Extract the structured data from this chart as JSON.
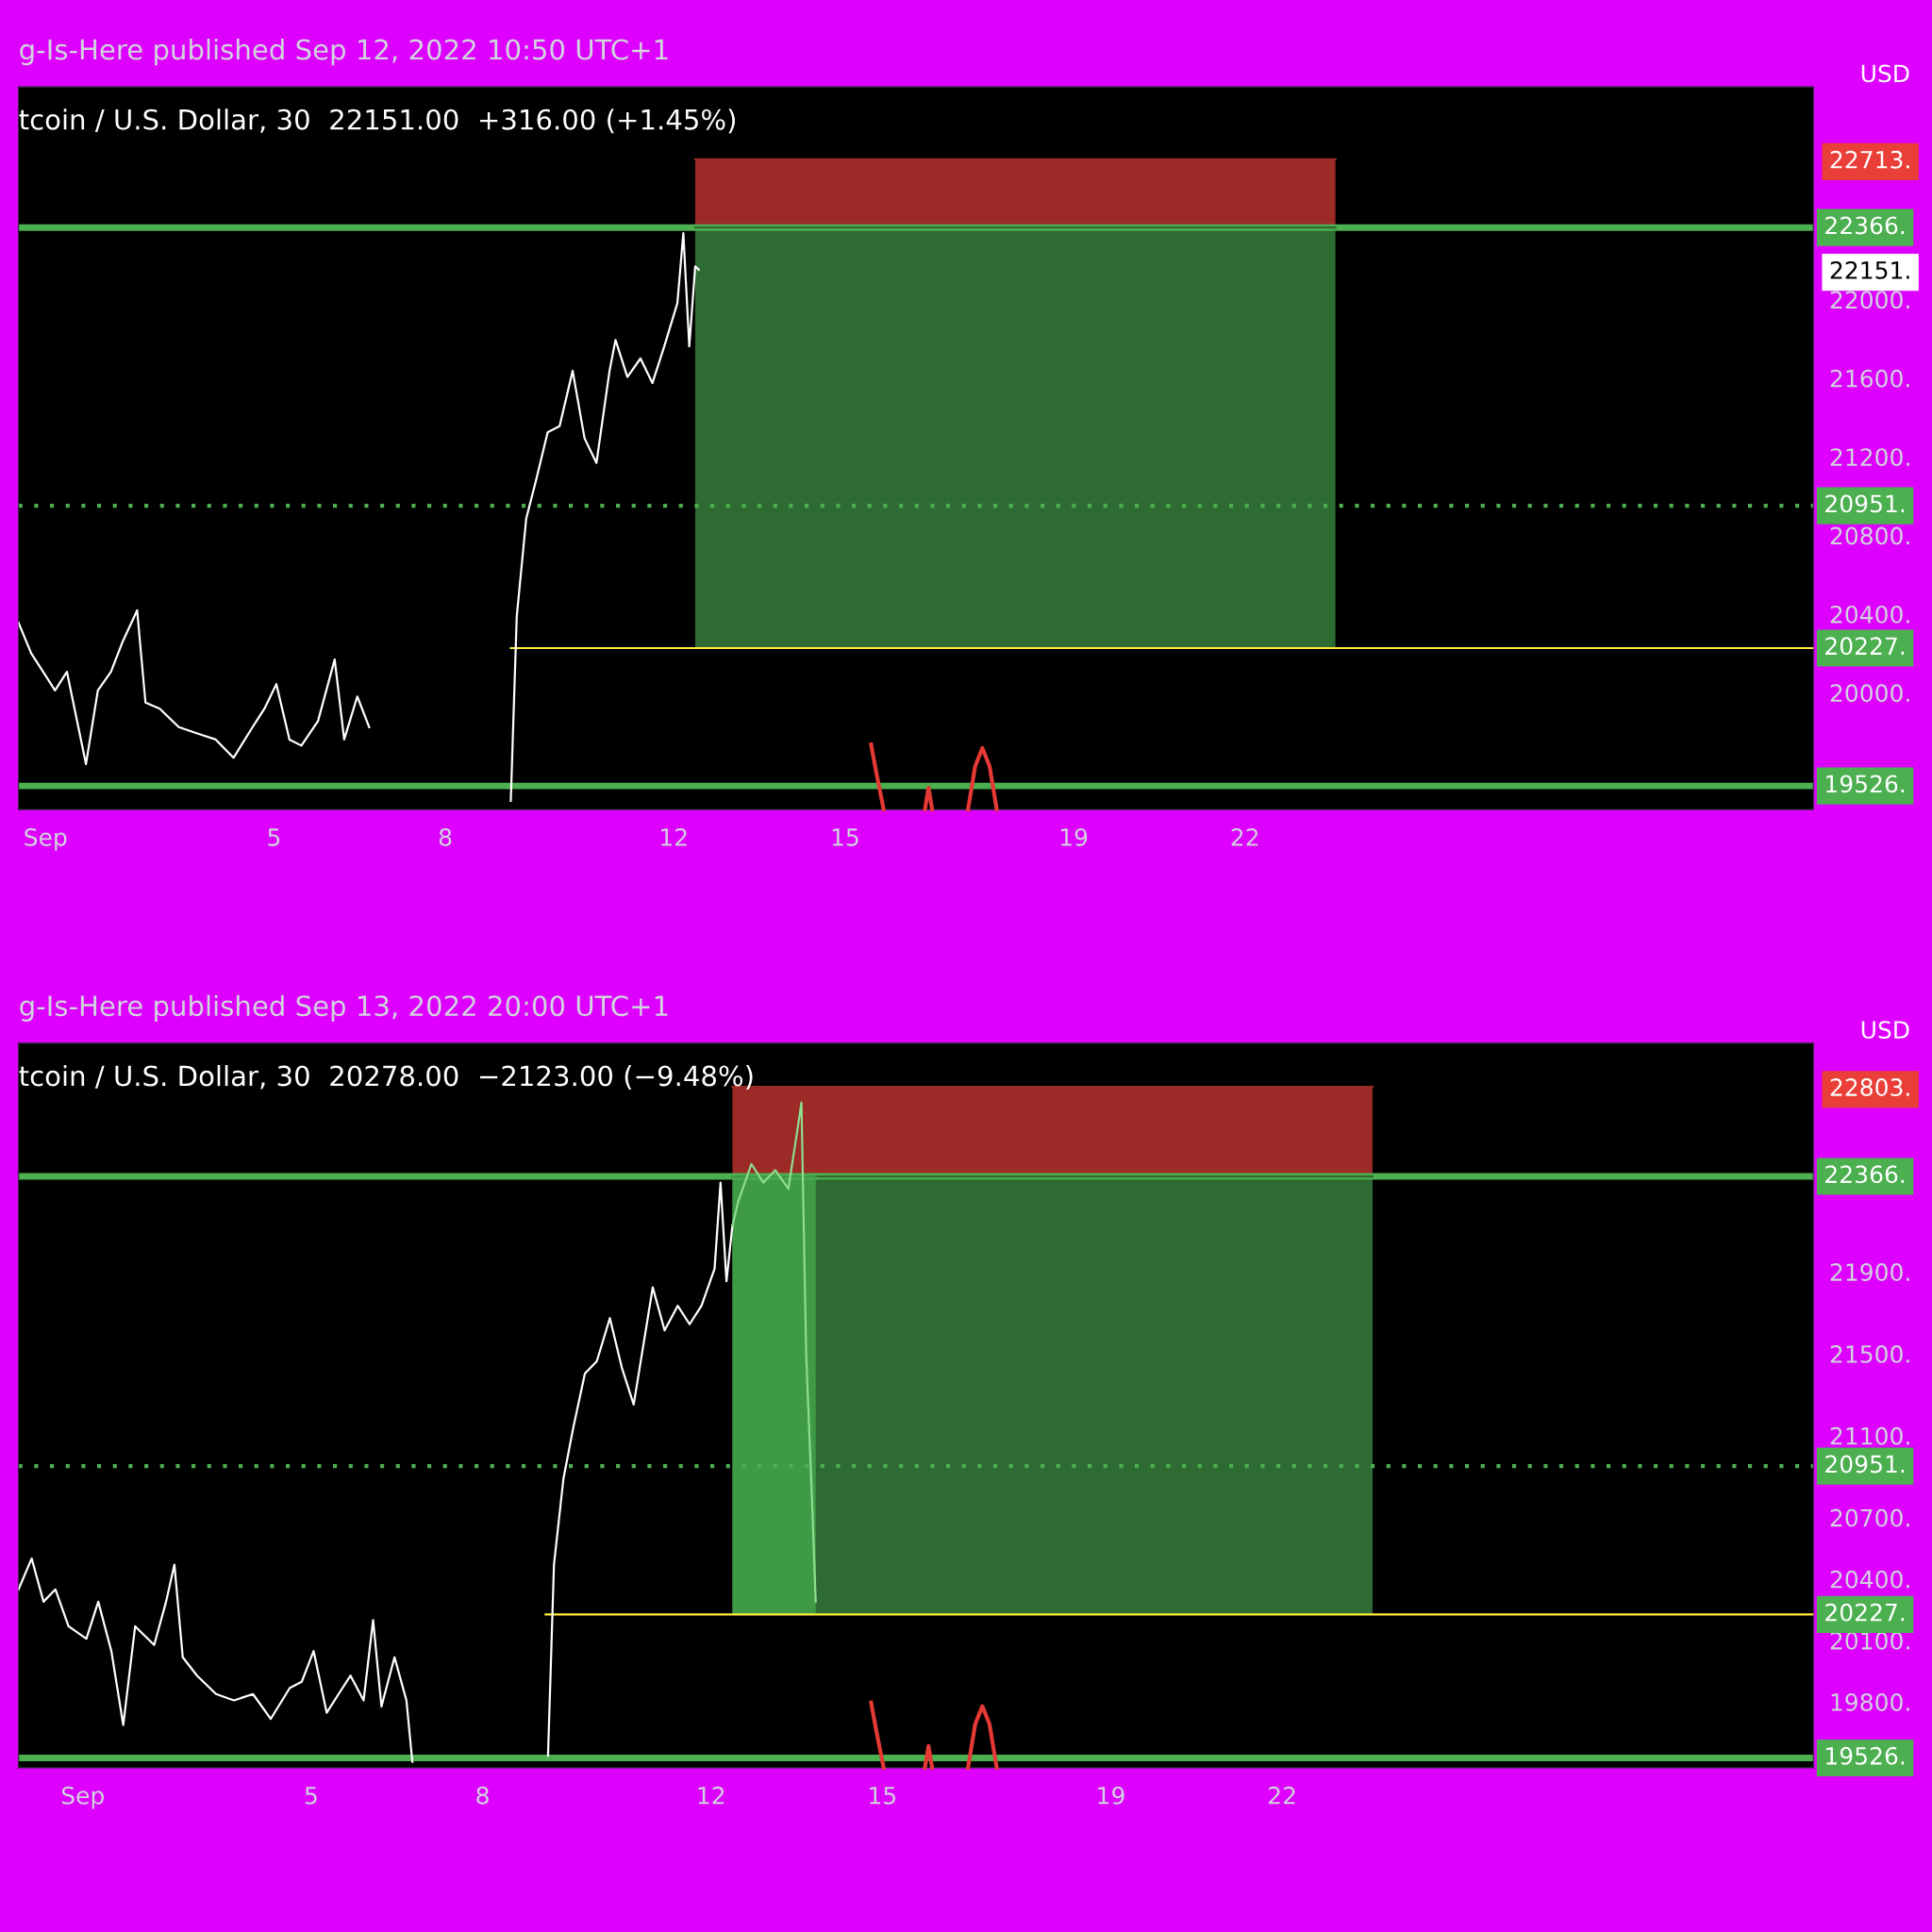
{
  "chart_data": [
    {
      "type": "line",
      "title": "g-Is-Here published Sep 12, 2022 10:50 UTC+1",
      "subtitle": "tcoin / U.S. Dollar, 30  22151.00  +316.00 (+1.45%)",
      "ylabel": "USD",
      "grid": false,
      "legend": false,
      "xlim": [
        "2022-08-31T12:40",
        "2022-10-01T22:50"
      ],
      "ylim": [
        19406,
        23081
      ],
      "xticks": [
        {
          "value": "2022-09-01",
          "label": "Sep"
        },
        {
          "value": "2022-09-05",
          "label": "5"
        },
        {
          "value": "2022-09-08",
          "label": "8"
        },
        {
          "value": "2022-09-12",
          "label": "12"
        },
        {
          "value": "2022-09-15",
          "label": "15"
        },
        {
          "value": "2022-09-19",
          "label": "19"
        },
        {
          "value": "2022-09-22",
          "label": "22"
        }
      ],
      "yticks": [
        {
          "value": 20000,
          "label": "20000."
        },
        {
          "value": 20400,
          "label": "20400."
        },
        {
          "value": 20800,
          "label": "20800."
        },
        {
          "value": 21200,
          "label": "21200."
        },
        {
          "value": 21600,
          "label": "21600."
        },
        {
          "value": 22000,
          "label": "22000."
        },
        {
          "value": 22151,
          "label": "22151."
        },
        {
          "value": 22713,
          "label": "22713."
        }
      ],
      "series": [
        {
          "type": "line",
          "x": [
            "2022-09-12T09:00",
            "2022-09-23T14:00"
          ],
          "values": [
            22713,
            22713
          ],
          "lower": [
            22366,
            22366
          ],
          "upper": [
            22713,
            22713
          ],
          "color": "#9c2a26"
        },
        {
          "type": "line",
          "x": [
            "2022-09-12T09:00",
            "2022-09-23T14:00"
          ],
          "values": [
            22366,
            22366
          ],
          "lower": [
            20227,
            20227
          ],
          "upper": [
            22366,
            22366
          ],
          "color": "#2e6b33"
        },
        {
          "type": "line",
          "color": "#ffeb3b",
          "x": [
            "2022-09-09T03:30",
            "2022-10-01T22:50"
          ],
          "values": [
            20227,
            20227
          ]
        },
        {
          "color": "#ffffff",
          "x": [
            "2022-08-31T12:40",
            "2022-08-31T18:00",
            "2022-08-31T23:00",
            "2022-09-01T04:00",
            "2022-09-01T09:00",
            "2022-09-01T17:00",
            "2022-09-01T22:00",
            "2022-09-02T03:30",
            "2022-09-02T08:30",
            "2022-09-02T14:30",
            "2022-09-02T18:00",
            "2022-09-03T00:00",
            "2022-09-03T08:00",
            "2022-09-03T15:30",
            "2022-09-03T23:30",
            "2022-09-04T07:00",
            "2022-09-04T15:00",
            "2022-09-04T20:00",
            "2022-09-05T01:00",
            "2022-09-05T06:30",
            "2022-09-05T11:30",
            "2022-09-05T18:30",
            "2022-09-06T01:30",
            "2022-09-06T05:30",
            "2022-09-06T11:00",
            "2022-09-06T16:00",
            "2022-09-07T18:00",
            "2022-09-09T03:30",
            "2022-09-09T06:00",
            "2022-09-09T10:00",
            "2022-09-09T14:00",
            "2022-09-09T19:00",
            "2022-09-10T00:00",
            "2022-09-10T05:30",
            "2022-09-10T10:30",
            "2022-09-10T15:30",
            "2022-09-10T21:00",
            "2022-09-10T23:30",
            "2022-09-11T04:30",
            "2022-09-11T10:00",
            "2022-09-11T15:00",
            "2022-09-11T20:00",
            "2022-09-12T01:30",
            "2022-09-12T04:00",
            "2022-09-12T06:30",
            "2022-09-12T09:00",
            "2022-09-12T10:30"
          ],
          "values": [
            20356,
            20200,
            20106,
            20012,
            20106,
            19637,
            20012,
            20106,
            20262,
            20419,
            19950,
            19919,
            19825,
            19794,
            19762,
            19669,
            19825,
            19919,
            20044,
            19762,
            19731,
            19856,
            20169,
            19762,
            19981,
            19825,
            null,
            19450,
            20387,
            20887,
            21075,
            21325,
            21356,
            21637,
            21294,
            21169,
            21637,
            21794,
            21606,
            21700,
            21575,
            21762,
            21981,
            22337,
            21762,
            22169,
            22151
          ]
        }
      ],
      "ref_lines": [
        {
          "axis": "y",
          "value": 22366,
          "label": "22366.",
          "color": "#4caf50",
          "line_style": "solid"
        },
        {
          "axis": "y",
          "value": 20951,
          "label": "20951.",
          "color": "#4caf50",
          "line_style": "dotted"
        },
        {
          "axis": "y",
          "value": 19526,
          "label": "19526.",
          "color": "#4caf50",
          "line_style": "solid"
        }
      ],
      "annotations": [
        {
          "text": "20227.",
          "x": "2022-10-01T22:50",
          "y": 20227
        }
      ]
    },
    {
      "type": "line",
      "title": "g-Is-Here published Sep 13, 2022 20:00 UTC+1",
      "subtitle": "tcoin / U.S. Dollar, 30  20278.00  −2123.00 (−9.48%)",
      "ylabel": "USD",
      "grid": false,
      "legend": false,
      "xlim": [
        "2022-08-30T21:00",
        "2022-10-01T07:15"
      ],
      "ylim": [
        19478,
        23016
      ],
      "xticks": [
        {
          "value": "2022-09-01",
          "label": "Sep"
        },
        {
          "value": "2022-09-05",
          "label": "5"
        },
        {
          "value": "2022-09-08",
          "label": "8"
        },
        {
          "value": "2022-09-12",
          "label": "12"
        },
        {
          "value": "2022-09-15",
          "label": "15"
        },
        {
          "value": "2022-09-19",
          "label": "19"
        },
        {
          "value": "2022-09-22",
          "label": "22"
        }
      ],
      "yticks": [
        {
          "value": 19800,
          "label": "19800."
        },
        {
          "value": 20100,
          "label": "20100."
        },
        {
          "value": 20400,
          "label": "20400."
        },
        {
          "value": 20700,
          "label": "20700."
        },
        {
          "value": 21100,
          "label": "21100."
        },
        {
          "value": 21500,
          "label": "21500."
        },
        {
          "value": 21900,
          "label": "21900."
        },
        {
          "value": 22803,
          "label": "22803."
        }
      ],
      "series": [
        {
          "type": "line",
          "x": [
            "2022-09-12T09:00",
            "2022-09-23T14:00"
          ],
          "values": [
            22803,
            22803
          ],
          "lower": [
            22366,
            22366
          ],
          "upper": [
            22803,
            22803
          ],
          "color": "#9c2a26"
        },
        {
          "type": "line",
          "x": [
            "2022-09-12T09:00",
            "2022-09-23T14:00"
          ],
          "values": [
            22366,
            22366
          ],
          "lower": [
            20227,
            20227
          ],
          "upper": [
            22366,
            22366
          ],
          "color": "#2e6b33"
        },
        {
          "type": "line",
          "x": [
            "2022-09-12T09:00",
            "2022-09-13T20:00"
          ],
          "values": [
            22366,
            22366
          ],
          "lower": [
            20227,
            20227
          ],
          "upper": [
            22366,
            22366
          ],
          "color": "#3f9a46"
        },
        {
          "type": "line",
          "color": "#ffeb3b",
          "x": [
            "2022-09-09T02:30",
            "2022-10-01T07:15"
          ],
          "values": [
            20227,
            20227
          ]
        },
        {
          "color": "#ffffff",
          "x": [
            "2022-08-30T21:00",
            "2022-08-31T02:30",
            "2022-08-31T07:30",
            "2022-08-31T12:30",
            "2022-08-31T18:00",
            "2022-09-01T01:30",
            "2022-09-01T06:30",
            "2022-09-01T12:00",
            "2022-09-01T17:00",
            "2022-09-01T22:00",
            "2022-09-02T06:00",
            "2022-09-02T11:00",
            "2022-09-02T14:30",
            "2022-09-02T18:00",
            "2022-09-03T00:00",
            "2022-09-03T08:00",
            "2022-09-03T15:30",
            "2022-09-03T23:30",
            "2022-09-04T07:00",
            "2022-09-04T15:00",
            "2022-09-04T20:00",
            "2022-09-05T01:00",
            "2022-09-05T06:30",
            "2022-09-05T11:30",
            "2022-09-05T16:30",
            "2022-09-05T22:00",
            "2022-09-06T02:00",
            "2022-09-06T05:30",
            "2022-09-06T11:00",
            "2022-09-06T16:00",
            "2022-09-06T18:30",
            "2022-09-07T23:00",
            "2022-09-09T03:30",
            "2022-09-09T06:00",
            "2022-09-09T10:00",
            "2022-09-09T14:00",
            "2022-09-09T19:00",
            "2022-09-10T00:00",
            "2022-09-10T05:30",
            "2022-09-10T10:30",
            "2022-09-10T15:30",
            "2022-09-10T21:00",
            "2022-09-10T23:30",
            "2022-09-11T04:30",
            "2022-09-11T10:00",
            "2022-09-11T15:00",
            "2022-09-11T20:00",
            "2022-09-12T01:30",
            "2022-09-12T04:00",
            "2022-09-12T06:30",
            "2022-09-12T09:00"
          ],
          "values": [
            20349,
            20500,
            20289,
            20349,
            20169,
            20108,
            20289,
            20048,
            19687,
            20169,
            20078,
            20289,
            20470,
            20018,
            19928,
            19838,
            19807,
            19838,
            19717,
            19868,
            19898,
            20048,
            19747,
            19838,
            19928,
            19807,
            20199,
            19777,
            20018,
            19807,
            19507,
            null,
            19537,
            20470,
            20891,
            21132,
            21403,
            21463,
            21674,
            21433,
            21252,
            21644,
            21824,
            21614,
            21734,
            21644,
            21734,
            21915,
            22336,
            21854,
            22125
          ]
        },
        {
          "color": "#8fdc8f",
          "x": [
            "2022-09-12T09:00",
            "2022-09-12T11:30",
            "2022-09-12T17:00",
            "2022-09-12T22:00",
            "2022-09-13T03:00",
            "2022-09-13T08:30",
            "2022-09-13T12:30",
            "2022-09-13T14:00",
            "2022-09-13T16:00",
            "2022-09-13T18:30",
            "2022-09-13T20:00"
          ],
          "values": [
            22125,
            22246,
            22426,
            22336,
            22396,
            22306,
            22607,
            22727,
            21493,
            20771,
            20289
          ]
        }
      ],
      "ref_lines": [
        {
          "axis": "y",
          "value": 22366,
          "label": "22366.",
          "color": "#4caf50",
          "line_style": "solid"
        },
        {
          "axis": "y",
          "value": 20951,
          "label": "20951.",
          "color": "#4caf50",
          "line_style": "dotted"
        },
        {
          "axis": "y",
          "value": 19526,
          "label": "19526.",
          "color": "#4caf50",
          "line_style": "solid"
        }
      ],
      "annotations": [
        {
          "text": "20227.",
          "x": "2022-10-01T07:15",
          "y": 20227
        }
      ]
    }
  ]
}
